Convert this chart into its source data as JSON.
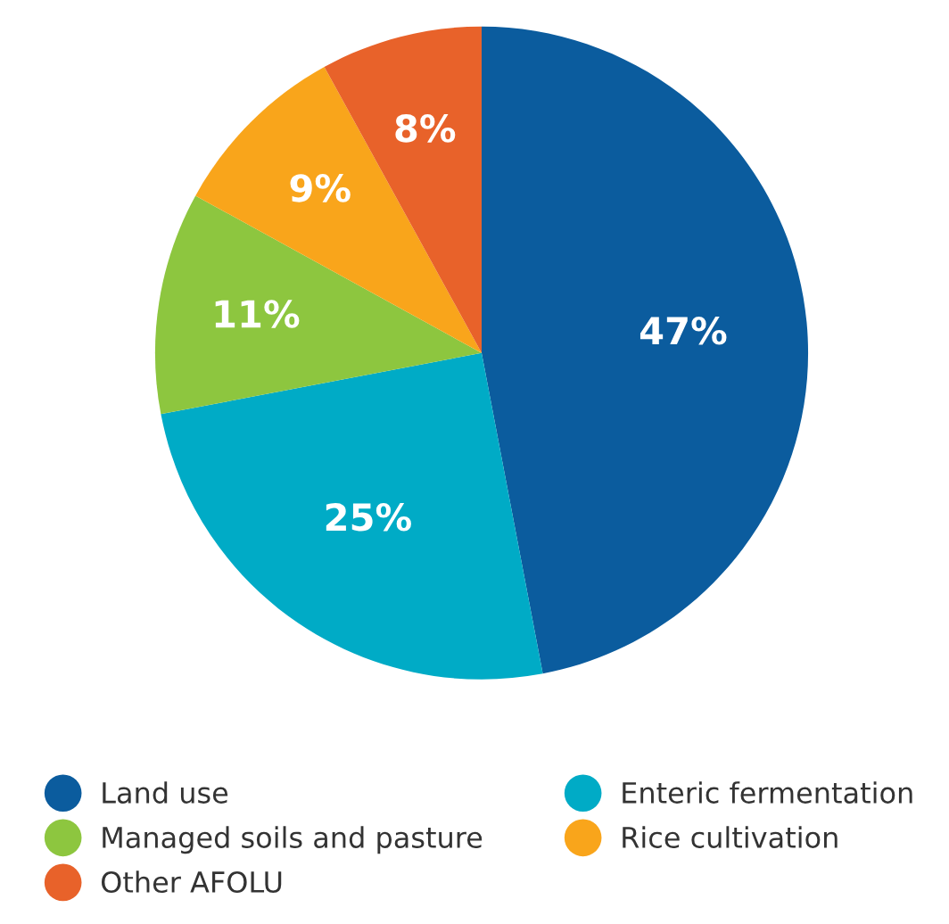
{
  "chart_data": {
    "type": "pie",
    "categories": [
      "Land use",
      "Enteric fermentation",
      "Managed soils and pasture",
      "Rice cultivation",
      "Other AFOLU"
    ],
    "values": [
      47,
      25,
      11,
      9,
      8
    ],
    "colors": [
      "#0b5c9e",
      "#00abc6",
      "#8dc63f",
      "#f9a51b",
      "#e8622a"
    ],
    "value_labels": [
      "47%",
      "25%",
      "11%",
      "9%",
      "8%"
    ],
    "legend": "bottom"
  }
}
